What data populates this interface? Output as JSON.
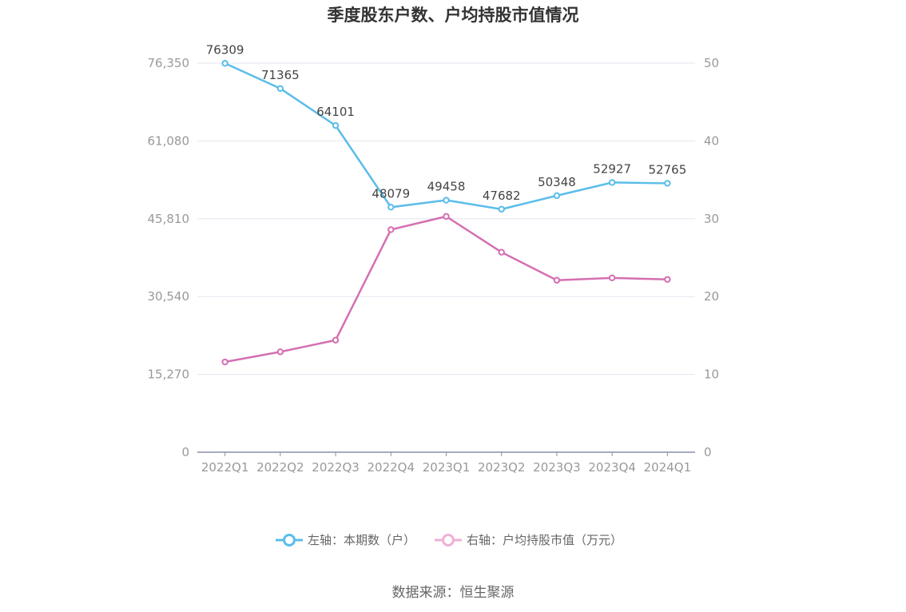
{
  "chart_data": {
    "type": "line",
    "title": "季度股东户数、户均持股市值情况",
    "categories": [
      "2022Q1",
      "2022Q2",
      "2022Q3",
      "2022Q4",
      "2023Q1",
      "2023Q2",
      "2023Q3",
      "2023Q4",
      "2024Q1"
    ],
    "left_axis": {
      "ticks": [
        "0",
        "15,270",
        "30,540",
        "45,810",
        "61,080",
        "76,350"
      ],
      "ylim": [
        0,
        76350
      ]
    },
    "right_axis": {
      "ticks": [
        "0",
        "10",
        "20",
        "30",
        "40",
        "50"
      ],
      "ylim": [
        0,
        50
      ]
    },
    "series": [
      {
        "name": "左轴：本期数（户）",
        "axis": "left",
        "color": "#5bbdea",
        "values": [
          76309,
          71365,
          64101,
          48079,
          49458,
          47682,
          50348,
          52927,
          52765
        ],
        "labels": [
          "76309",
          "71365",
          "64101",
          "48079",
          "49458",
          "47682",
          "50348",
          "52927",
          "52765"
        ]
      },
      {
        "name": "右轴：户均持股市值（万元）",
        "axis": "right",
        "color": "#d46fb1",
        "legend_color": "#eeb0d6",
        "values": [
          11.6,
          12.9,
          14.4,
          28.6,
          30.3,
          25.7,
          22.1,
          22.4,
          22.2
        ]
      }
    ],
    "grid": true,
    "legend_position": "bottom-center"
  },
  "source": "数据来源：恒生聚源"
}
